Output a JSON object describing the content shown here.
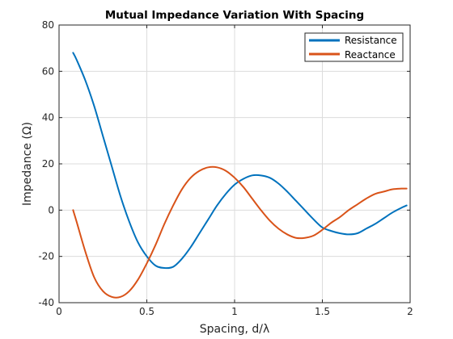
{
  "chart_data": {
    "type": "line",
    "title": "Mutual Impedance Variation With Spacing",
    "xlabel": "Spacing, d/λ",
    "ylabel": "Impedance (Ω)",
    "xlim": [
      0,
      2
    ],
    "ylim": [
      -40,
      80
    ],
    "xticks": [
      0,
      0.5,
      1,
      1.5,
      2
    ],
    "xtick_labels": [
      "0",
      "0.5",
      "1",
      "1.5",
      "2"
    ],
    "yticks": [
      -40,
      -20,
      0,
      20,
      40,
      60,
      80
    ],
    "ytick_labels": [
      "-40",
      "-20",
      "0",
      "20",
      "40",
      "60",
      "80"
    ],
    "grid": true,
    "legend_position": "top-right",
    "series": [
      {
        "name": "Resistance",
        "color": "#0072BD",
        "x": [
          0.08,
          0.1,
          0.15,
          0.2,
          0.25,
          0.3,
          0.35,
          0.4,
          0.45,
          0.5,
          0.55,
          0.6,
          0.65,
          0.7,
          0.75,
          0.8,
          0.85,
          0.9,
          0.95,
          1.0,
          1.05,
          1.1,
          1.15,
          1.2,
          1.25,
          1.3,
          1.35,
          1.4,
          1.45,
          1.5,
          1.55,
          1.6,
          1.65,
          1.7,
          1.75,
          1.8,
          1.85,
          1.9,
          1.95,
          1.98
        ],
        "y": [
          68,
          65,
          56,
          45,
          32,
          19,
          6,
          -5,
          -14,
          -20,
          -24,
          -25,
          -24.5,
          -21,
          -16,
          -10,
          -4,
          2,
          7,
          11,
          13.5,
          15,
          15,
          14,
          11.5,
          8,
          4,
          0,
          -4,
          -7.5,
          -9,
          -10,
          -10.5,
          -10,
          -8,
          -6,
          -3.5,
          -1,
          1,
          2
        ]
      },
      {
        "name": "Reactance",
        "color": "#D95319",
        "x": [
          0.08,
          0.1,
          0.15,
          0.2,
          0.25,
          0.3,
          0.35,
          0.4,
          0.45,
          0.5,
          0.55,
          0.6,
          0.65,
          0.7,
          0.75,
          0.8,
          0.85,
          0.9,
          0.95,
          1.0,
          1.05,
          1.1,
          1.15,
          1.2,
          1.25,
          1.3,
          1.35,
          1.4,
          1.45,
          1.5,
          1.55,
          1.6,
          1.65,
          1.7,
          1.75,
          1.8,
          1.85,
          1.9,
          1.95,
          1.98
        ],
        "y": [
          0,
          -5,
          -18,
          -29,
          -35,
          -37.5,
          -37.5,
          -35,
          -30,
          -23,
          -15,
          -6,
          2,
          9,
          14,
          17,
          18.5,
          18.5,
          17,
          14,
          10,
          5,
          0,
          -4.5,
          -8,
          -10.5,
          -12,
          -12,
          -11,
          -8.5,
          -5.5,
          -3,
          0,
          2.5,
          5,
          7,
          8,
          9,
          9.3,
          9.3
        ]
      }
    ]
  }
}
